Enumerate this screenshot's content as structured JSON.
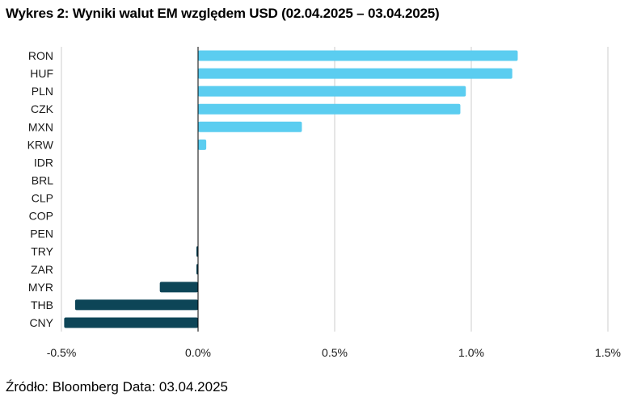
{
  "title": "Wykres 2: Wyniki walut EM względem USD (02.04.2025 – 03.04.2025)",
  "source": "Źródło: Bloomberg Data: 03.04.2025",
  "chart_data": {
    "type": "bar",
    "orientation": "horizontal",
    "categories": [
      "RON",
      "HUF",
      "PLN",
      "CZK",
      "MXN",
      "KRW",
      "IDR",
      "BRL",
      "CLP",
      "COP",
      "PEN",
      "TRY",
      "ZAR",
      "MYR",
      "THB",
      "CNY"
    ],
    "values": [
      1.17,
      1.15,
      0.98,
      0.96,
      0.38,
      0.03,
      0.0,
      0.0,
      0.0,
      0.0,
      0.0,
      -0.005,
      -0.005,
      -0.14,
      -0.45,
      -0.49
    ],
    "unit": "%",
    "xlim": [
      -0.5,
      1.5
    ],
    "xticks": [
      -0.5,
      0.0,
      0.5,
      1.0,
      1.5
    ],
    "xtick_labels": [
      "-0.5%",
      "0.0%",
      "0.5%",
      "1.0%",
      "1.5%"
    ],
    "grid": "vertical",
    "colors": {
      "positive": "#5bcdf0",
      "negative": "#0d4557",
      "grid": "#cccccc",
      "axis": "#000000"
    }
  }
}
